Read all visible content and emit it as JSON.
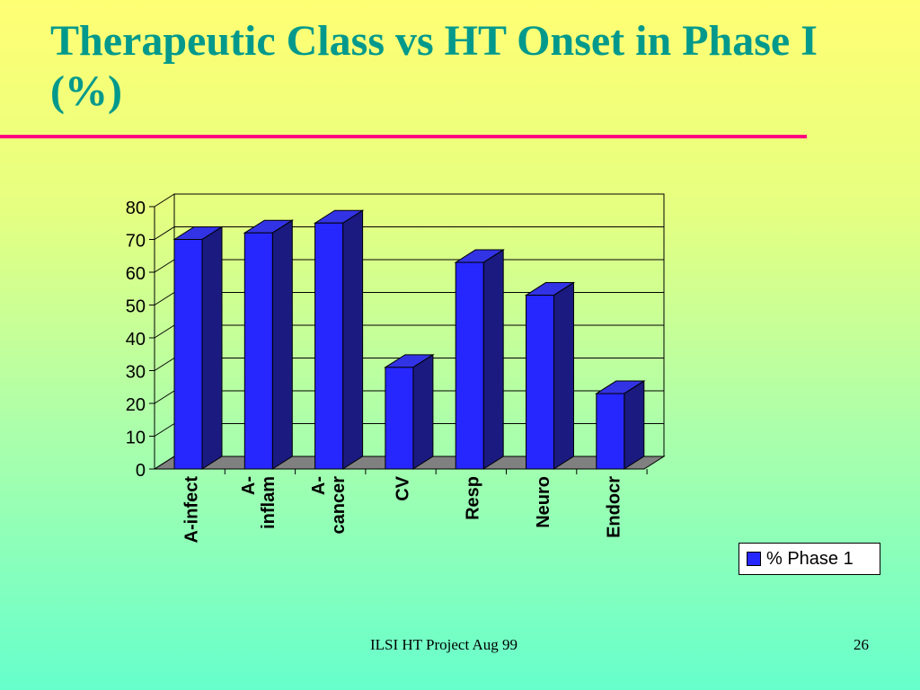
{
  "slide": {
    "title": "Therapeutic Class vs HT Onset in Phase I (%)",
    "footer": "ILSI HT Project  Aug 99",
    "page_number": "26"
  },
  "colors": {
    "title": "#00998c",
    "rule": "#ff0080",
    "bar_front": "#2626ff",
    "bar_side": "#1a1a80",
    "bar_top": "#3333e6",
    "floor": "#808080"
  },
  "chart_data": {
    "type": "bar",
    "title": "",
    "xlabel": "",
    "ylabel": "",
    "categories": [
      "A-infect",
      "A-\ninflam",
      "A-\ncancer",
      "CV",
      "Resp",
      "Neuro",
      "Endocr"
    ],
    "series": [
      {
        "name": "% Phase 1",
        "values": [
          70,
          72,
          75,
          31,
          63,
          53,
          23
        ]
      }
    ],
    "y_ticks": [
      "0",
      "10",
      "20",
      "30",
      "40",
      "50",
      "60",
      "70",
      "80"
    ],
    "ylim": [
      0,
      80
    ],
    "grid": true,
    "legend": "bottom-right"
  }
}
